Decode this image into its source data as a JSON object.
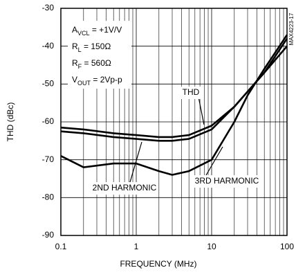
{
  "chart_data": {
    "type": "line",
    "xlabel": "FREQUENCY (MHz)",
    "ylabel": "THD (dBc)",
    "x": [
      0.1,
      0.2,
      0.5,
      1,
      2,
      3,
      5,
      10,
      20,
      30,
      50,
      100
    ],
    "series": [
      {
        "name": "THD",
        "color": "#000000",
        "values": [
          -61.5,
          -62,
          -63,
          -63.5,
          -64,
          -64,
          -63.5,
          -61,
          -56,
          -52,
          -47,
          -38
        ]
      },
      {
        "name": "2ND HARMONIC",
        "color": "#000000",
        "values": [
          -62.5,
          -63,
          -64,
          -64.5,
          -65,
          -65,
          -64.5,
          -62,
          -56,
          -52,
          -47,
          -40
        ]
      },
      {
        "name": "3RD HARMONIC",
        "color": "#000000",
        "values": [
          -69,
          -72,
          -71,
          -71,
          -73,
          -74,
          -73,
          -70,
          -60,
          -53,
          -46,
          -37
        ]
      }
    ],
    "xlim": [
      0.1,
      100
    ],
    "ylim": [
      -90,
      -30
    ],
    "xscale": "log",
    "xticks": [
      0.1,
      1,
      10,
      100
    ],
    "yticks": [
      -90,
      -80,
      -70,
      -60,
      -50,
      -40,
      -30
    ],
    "grid": true,
    "conditions": [
      [
        "A",
        "VCL",
        " = +1V/V"
      ],
      [
        "R",
        "L",
        " = 150Ω"
      ],
      [
        "R",
        "F",
        " = 560Ω"
      ],
      [
        "V",
        "OUT",
        " = 2Vp-p"
      ]
    ],
    "figure_id": "MAX4223-17"
  }
}
